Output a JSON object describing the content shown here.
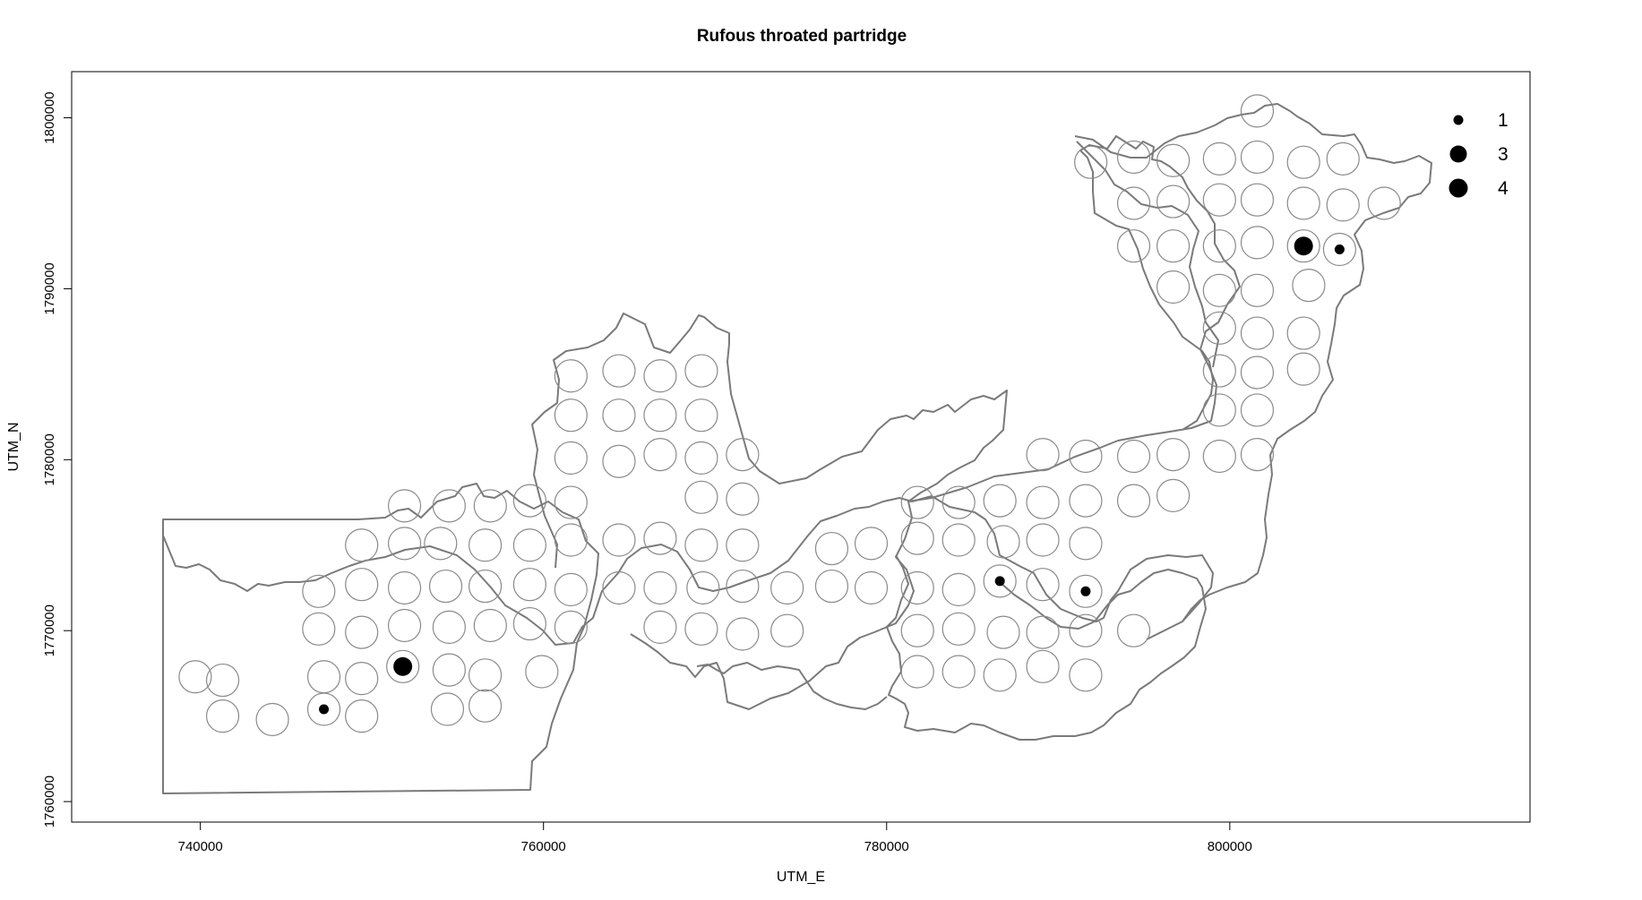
{
  "chart_data": {
    "type": "scatter",
    "title": "Rufous throated partridge",
    "xlabel": "UTM_E",
    "ylabel": "UTM_N",
    "xlim": [
      732500,
      817500
    ],
    "ylim": [
      1758800,
      1802700
    ],
    "xticks": [
      740000,
      760000,
      780000,
      800000
    ],
    "xtick_labels": [
      "740000",
      "760000",
      "780000",
      "800000"
    ],
    "yticks": [
      1760000,
      1770000,
      1780000,
      1790000,
      1800000
    ],
    "ytick_labels": [
      "1760000",
      "1770000",
      "1780000",
      "1790000",
      "1800000"
    ],
    "grid": false,
    "legend_position": "top-right",
    "legend": [
      {
        "label": "1",
        "count": 1
      },
      {
        "label": "3",
        "count": 3
      },
      {
        "label": "4",
        "count": 4
      }
    ],
    "survey_points": [
      [
        801.6,
        1800.4
      ],
      [
        741.3,
        1767.1
      ],
      [
        739.7,
        1767.3
      ],
      [
        741.3,
        1765.0
      ],
      [
        744.2,
        1764.8
      ],
      [
        747.2,
        1765.4
      ],
      [
        749.4,
        1765.0
      ],
      [
        754.4,
        1765.4
      ],
      [
        756.6,
        1765.6
      ],
      [
        747.2,
        1767.3
      ],
      [
        749.4,
        1767.2
      ],
      [
        751.8,
        1767.9
      ],
      [
        754.5,
        1767.7
      ],
      [
        756.6,
        1767.4
      ],
      [
        759.9,
        1767.6
      ],
      [
        746.9,
        1770.1
      ],
      [
        749.4,
        1769.9
      ],
      [
        751.9,
        1770.3
      ],
      [
        754.5,
        1770.2
      ],
      [
        756.9,
        1770.3
      ],
      [
        759.2,
        1770.4
      ],
      [
        761.6,
        1770.2
      ],
      [
        766.8,
        1770.2
      ],
      [
        769.2,
        1770.1
      ],
      [
        771.6,
        1769.8
      ],
      [
        774.2,
        1770.0
      ],
      [
        746.9,
        1772.3
      ],
      [
        749.4,
        1772.7
      ],
      [
        751.9,
        1772.5
      ],
      [
        754.3,
        1772.6
      ],
      [
        756.6,
        1772.6
      ],
      [
        759.2,
        1772.7
      ],
      [
        761.6,
        1772.4
      ],
      [
        764.4,
        1772.5
      ],
      [
        766.8,
        1772.5
      ],
      [
        769.3,
        1772.5
      ],
      [
        771.6,
        1772.6
      ],
      [
        774.2,
        1772.5
      ],
      [
        776.8,
        1772.6
      ],
      [
        779.1,
        1772.5
      ],
      [
        781.8,
        1772.5
      ],
      [
        784.2,
        1772.4
      ],
      [
        786.6,
        1772.9
      ],
      [
        789.1,
        1772.7
      ],
      [
        791.6,
        1772.3
      ],
      [
        749.4,
        1775.0
      ],
      [
        751.9,
        1775.1
      ],
      [
        754.0,
        1775.1
      ],
      [
        756.6,
        1775.0
      ],
      [
        759.2,
        1775.0
      ],
      [
        761.6,
        1775.3
      ],
      [
        764.4,
        1775.3
      ],
      [
        766.8,
        1775.4
      ],
      [
        769.2,
        1775.0
      ],
      [
        771.6,
        1775.0
      ],
      [
        776.8,
        1774.8
      ],
      [
        779.1,
        1775.1
      ],
      [
        781.8,
        1775.4
      ],
      [
        784.2,
        1775.3
      ],
      [
        786.8,
        1775.2
      ],
      [
        789.1,
        1775.3
      ],
      [
        791.6,
        1775.1
      ],
      [
        751.9,
        1777.3
      ],
      [
        754.5,
        1777.3
      ],
      [
        756.9,
        1777.3
      ],
      [
        759.2,
        1777.6
      ],
      [
        761.6,
        1777.5
      ],
      [
        769.2,
        1777.8
      ],
      [
        771.6,
        1777.7
      ],
      [
        781.8,
        1777.5
      ],
      [
        784.2,
        1777.5
      ],
      [
        786.6,
        1777.6
      ],
      [
        789.1,
        1777.5
      ],
      [
        791.6,
        1777.6
      ],
      [
        794.4,
        1777.6
      ],
      [
        796.7,
        1777.9
      ],
      [
        761.6,
        1780.1
      ],
      [
        764.4,
        1779.9
      ],
      [
        766.8,
        1780.3
      ],
      [
        769.2,
        1780.1
      ],
      [
        771.6,
        1780.3
      ],
      [
        789.1,
        1780.3
      ],
      [
        791.6,
        1780.2
      ],
      [
        794.4,
        1780.2
      ],
      [
        796.7,
        1780.3
      ],
      [
        799.4,
        1780.2
      ],
      [
        801.6,
        1780.3
      ],
      [
        761.6,
        1782.6
      ],
      [
        764.4,
        1782.6
      ],
      [
        766.8,
        1782.6
      ],
      [
        769.2,
        1782.6
      ],
      [
        799.4,
        1782.9
      ],
      [
        801.6,
        1782.9
      ],
      [
        761.6,
        1784.9
      ],
      [
        764.4,
        1785.2
      ],
      [
        766.8,
        1784.9
      ],
      [
        769.2,
        1785.2
      ],
      [
        799.4,
        1785.2
      ],
      [
        801.6,
        1785.1
      ],
      [
        804.3,
        1785.3
      ],
      [
        799.4,
        1787.7
      ],
      [
        801.6,
        1787.4
      ],
      [
        804.3,
        1787.4
      ],
      [
        796.7,
        1790.1
      ],
      [
        799.4,
        1789.9
      ],
      [
        801.6,
        1789.9
      ],
      [
        804.6,
        1790.2
      ],
      [
        794.4,
        1792.5
      ],
      [
        796.7,
        1792.5
      ],
      [
        799.4,
        1792.5
      ],
      [
        801.6,
        1792.7
      ],
      [
        804.3,
        1792.5
      ],
      [
        806.4,
        1792.3
      ],
      [
        794.4,
        1795.0
      ],
      [
        796.7,
        1795.1
      ],
      [
        799.4,
        1795.2
      ],
      [
        801.6,
        1795.2
      ],
      [
        804.3,
        1795.0
      ],
      [
        806.6,
        1794.9
      ],
      [
        809.0,
        1795.0
      ],
      [
        791.9,
        1797.4
      ],
      [
        794.4,
        1797.7
      ],
      [
        796.7,
        1797.5
      ],
      [
        799.4,
        1797.6
      ],
      [
        801.6,
        1797.7
      ],
      [
        804.3,
        1797.4
      ],
      [
        806.6,
        1797.6
      ],
      [
        781.8,
        1767.6
      ],
      [
        784.2,
        1767.6
      ],
      [
        786.6,
        1767.4
      ],
      [
        789.1,
        1767.9
      ],
      [
        791.6,
        1767.4
      ],
      [
        781.8,
        1770.0
      ],
      [
        784.2,
        1770.1
      ],
      [
        786.8,
        1769.9
      ],
      [
        789.1,
        1769.9
      ],
      [
        791.6,
        1770.0
      ],
      [
        794.4,
        1770.0
      ]
    ],
    "detections": [
      {
        "x": 747.2,
        "y": 1765.4,
        "count": 1
      },
      {
        "x": 751.8,
        "y": 1767.9,
        "count": 4
      },
      {
        "x": 786.6,
        "y": 1772.9,
        "count": 1
      },
      {
        "x": 791.6,
        "y": 1772.3,
        "count": 1
      },
      {
        "x": 804.3,
        "y": 1792.5,
        "count": 4
      },
      {
        "x": 806.4,
        "y": 1792.3,
        "count": 1
      }
    ],
    "coordinate_units": "kilometres (multiply by 1000 for UTM metres)"
  },
  "colors": {
    "boundary": "#7a7a7a",
    "circle": "#8a8a8a",
    "marker": "#000000",
    "frame": "#000000"
  }
}
